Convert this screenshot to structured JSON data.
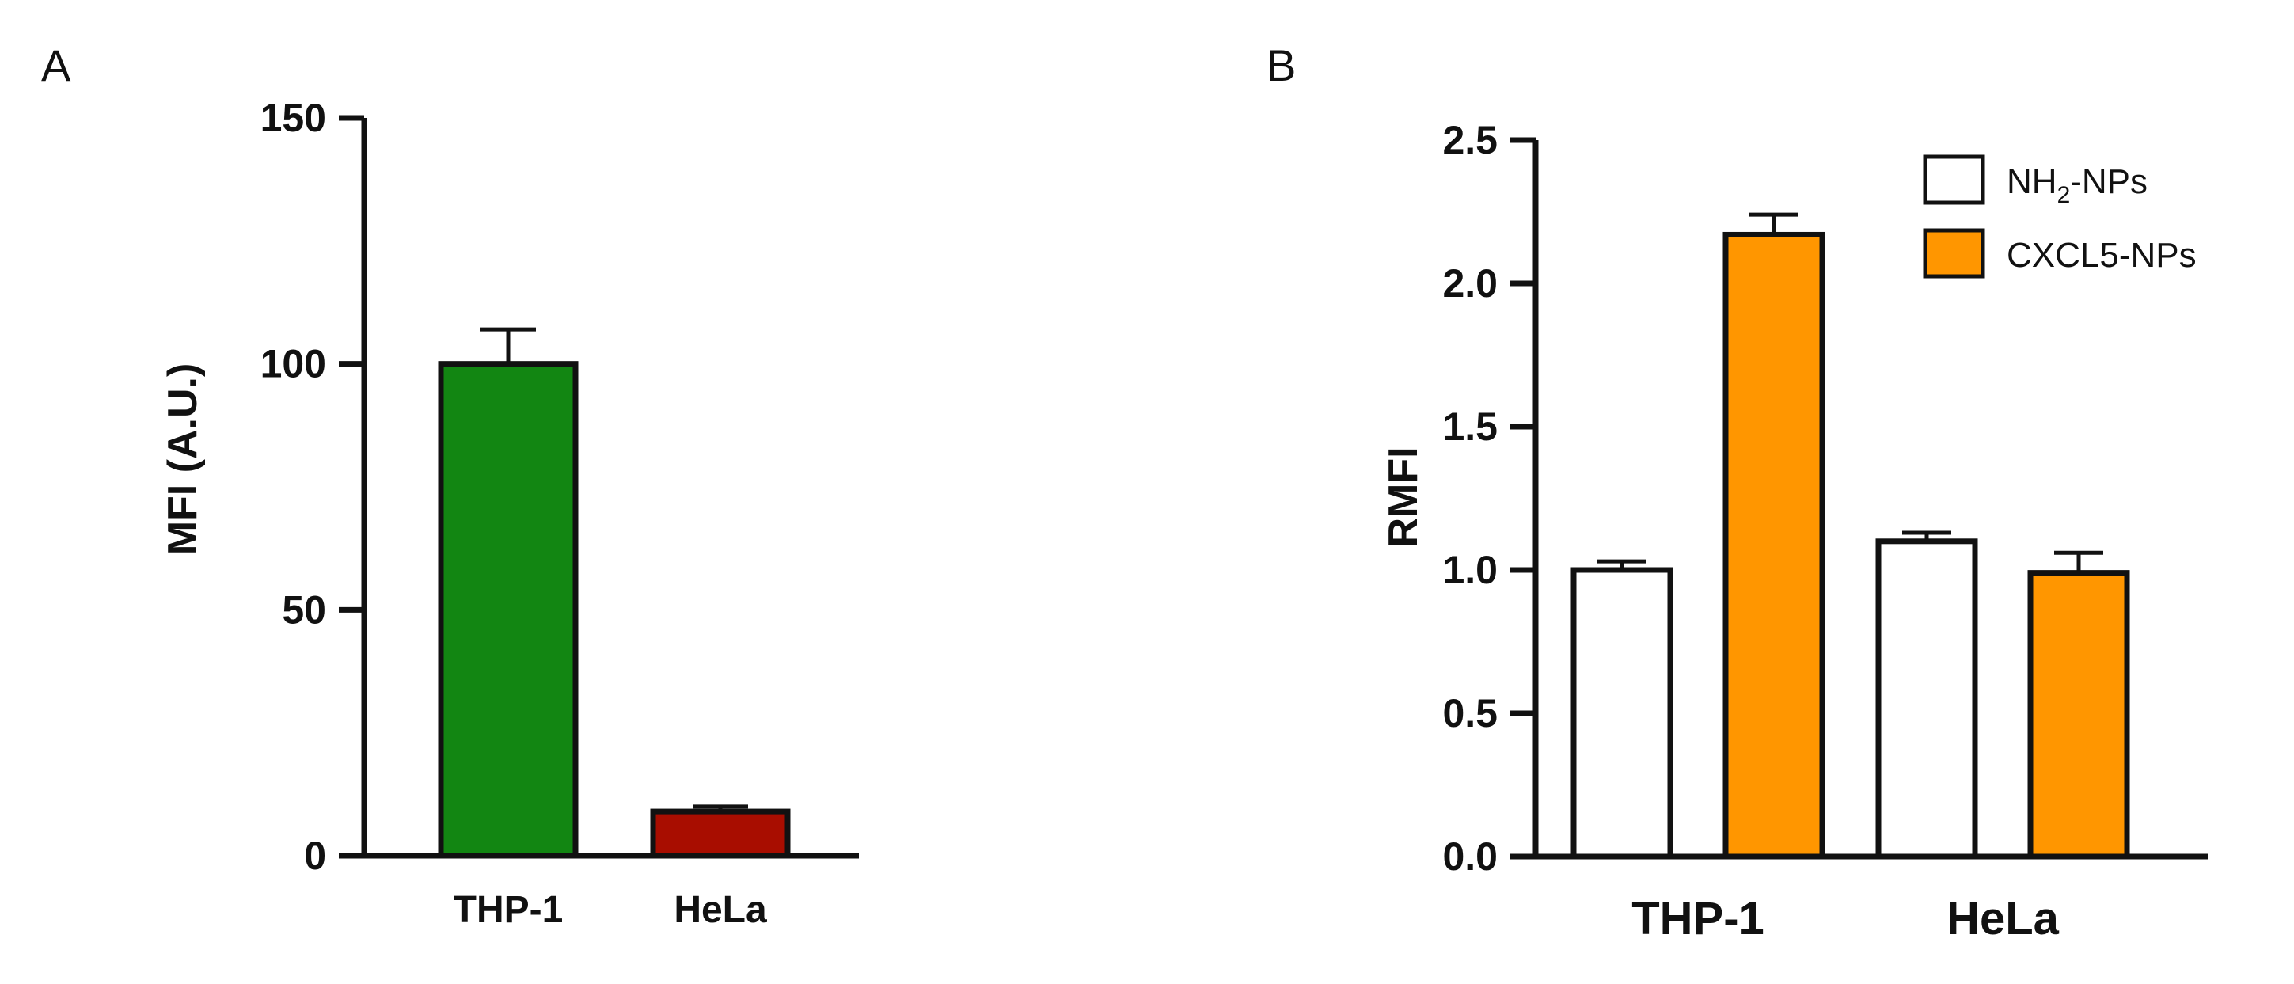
{
  "panels": {
    "a_label": "A",
    "b_label": "B"
  },
  "chart_data": [
    {
      "type": "bar",
      "panel": "A",
      "ylabel": "MFI (A.U.)",
      "xlabel": "",
      "ylim": [
        0,
        150
      ],
      "yticks": [
        "0",
        "50",
        "100",
        "150"
      ],
      "ytick_values": [
        0,
        50,
        100,
        150
      ],
      "categories": [
        "THP-1",
        "HeLa"
      ],
      "values": [
        100,
        9
      ],
      "errors": [
        7,
        1
      ],
      "bar_colors": [
        "#128612",
        "#a80d00"
      ],
      "legend": null,
      "grid": false
    },
    {
      "type": "bar",
      "panel": "B",
      "ylabel": "RMFI",
      "xlabel": "",
      "ylim": [
        0,
        2.5
      ],
      "yticks": [
        "0.0",
        "0.5",
        "1.0",
        "1.5",
        "2.0",
        "2.5"
      ],
      "ytick_values": [
        0,
        0.5,
        1.0,
        1.5,
        2.0,
        2.5
      ],
      "categories": [
        "THP-1",
        "HeLa"
      ],
      "series": [
        {
          "name_main": "NH",
          "name_sub": "2",
          "name_rest": "-NPs",
          "name": "NH2-NPs",
          "color": "#ffffff",
          "values": [
            1.0,
            1.1
          ],
          "errors": [
            0.03,
            0.03
          ]
        },
        {
          "name": "CXCL5-NPs",
          "color": "#ff9600",
          "values": [
            2.17,
            0.99
          ],
          "errors": [
            0.07,
            0.07
          ]
        }
      ],
      "legend": "top-right",
      "grid": false
    }
  ]
}
